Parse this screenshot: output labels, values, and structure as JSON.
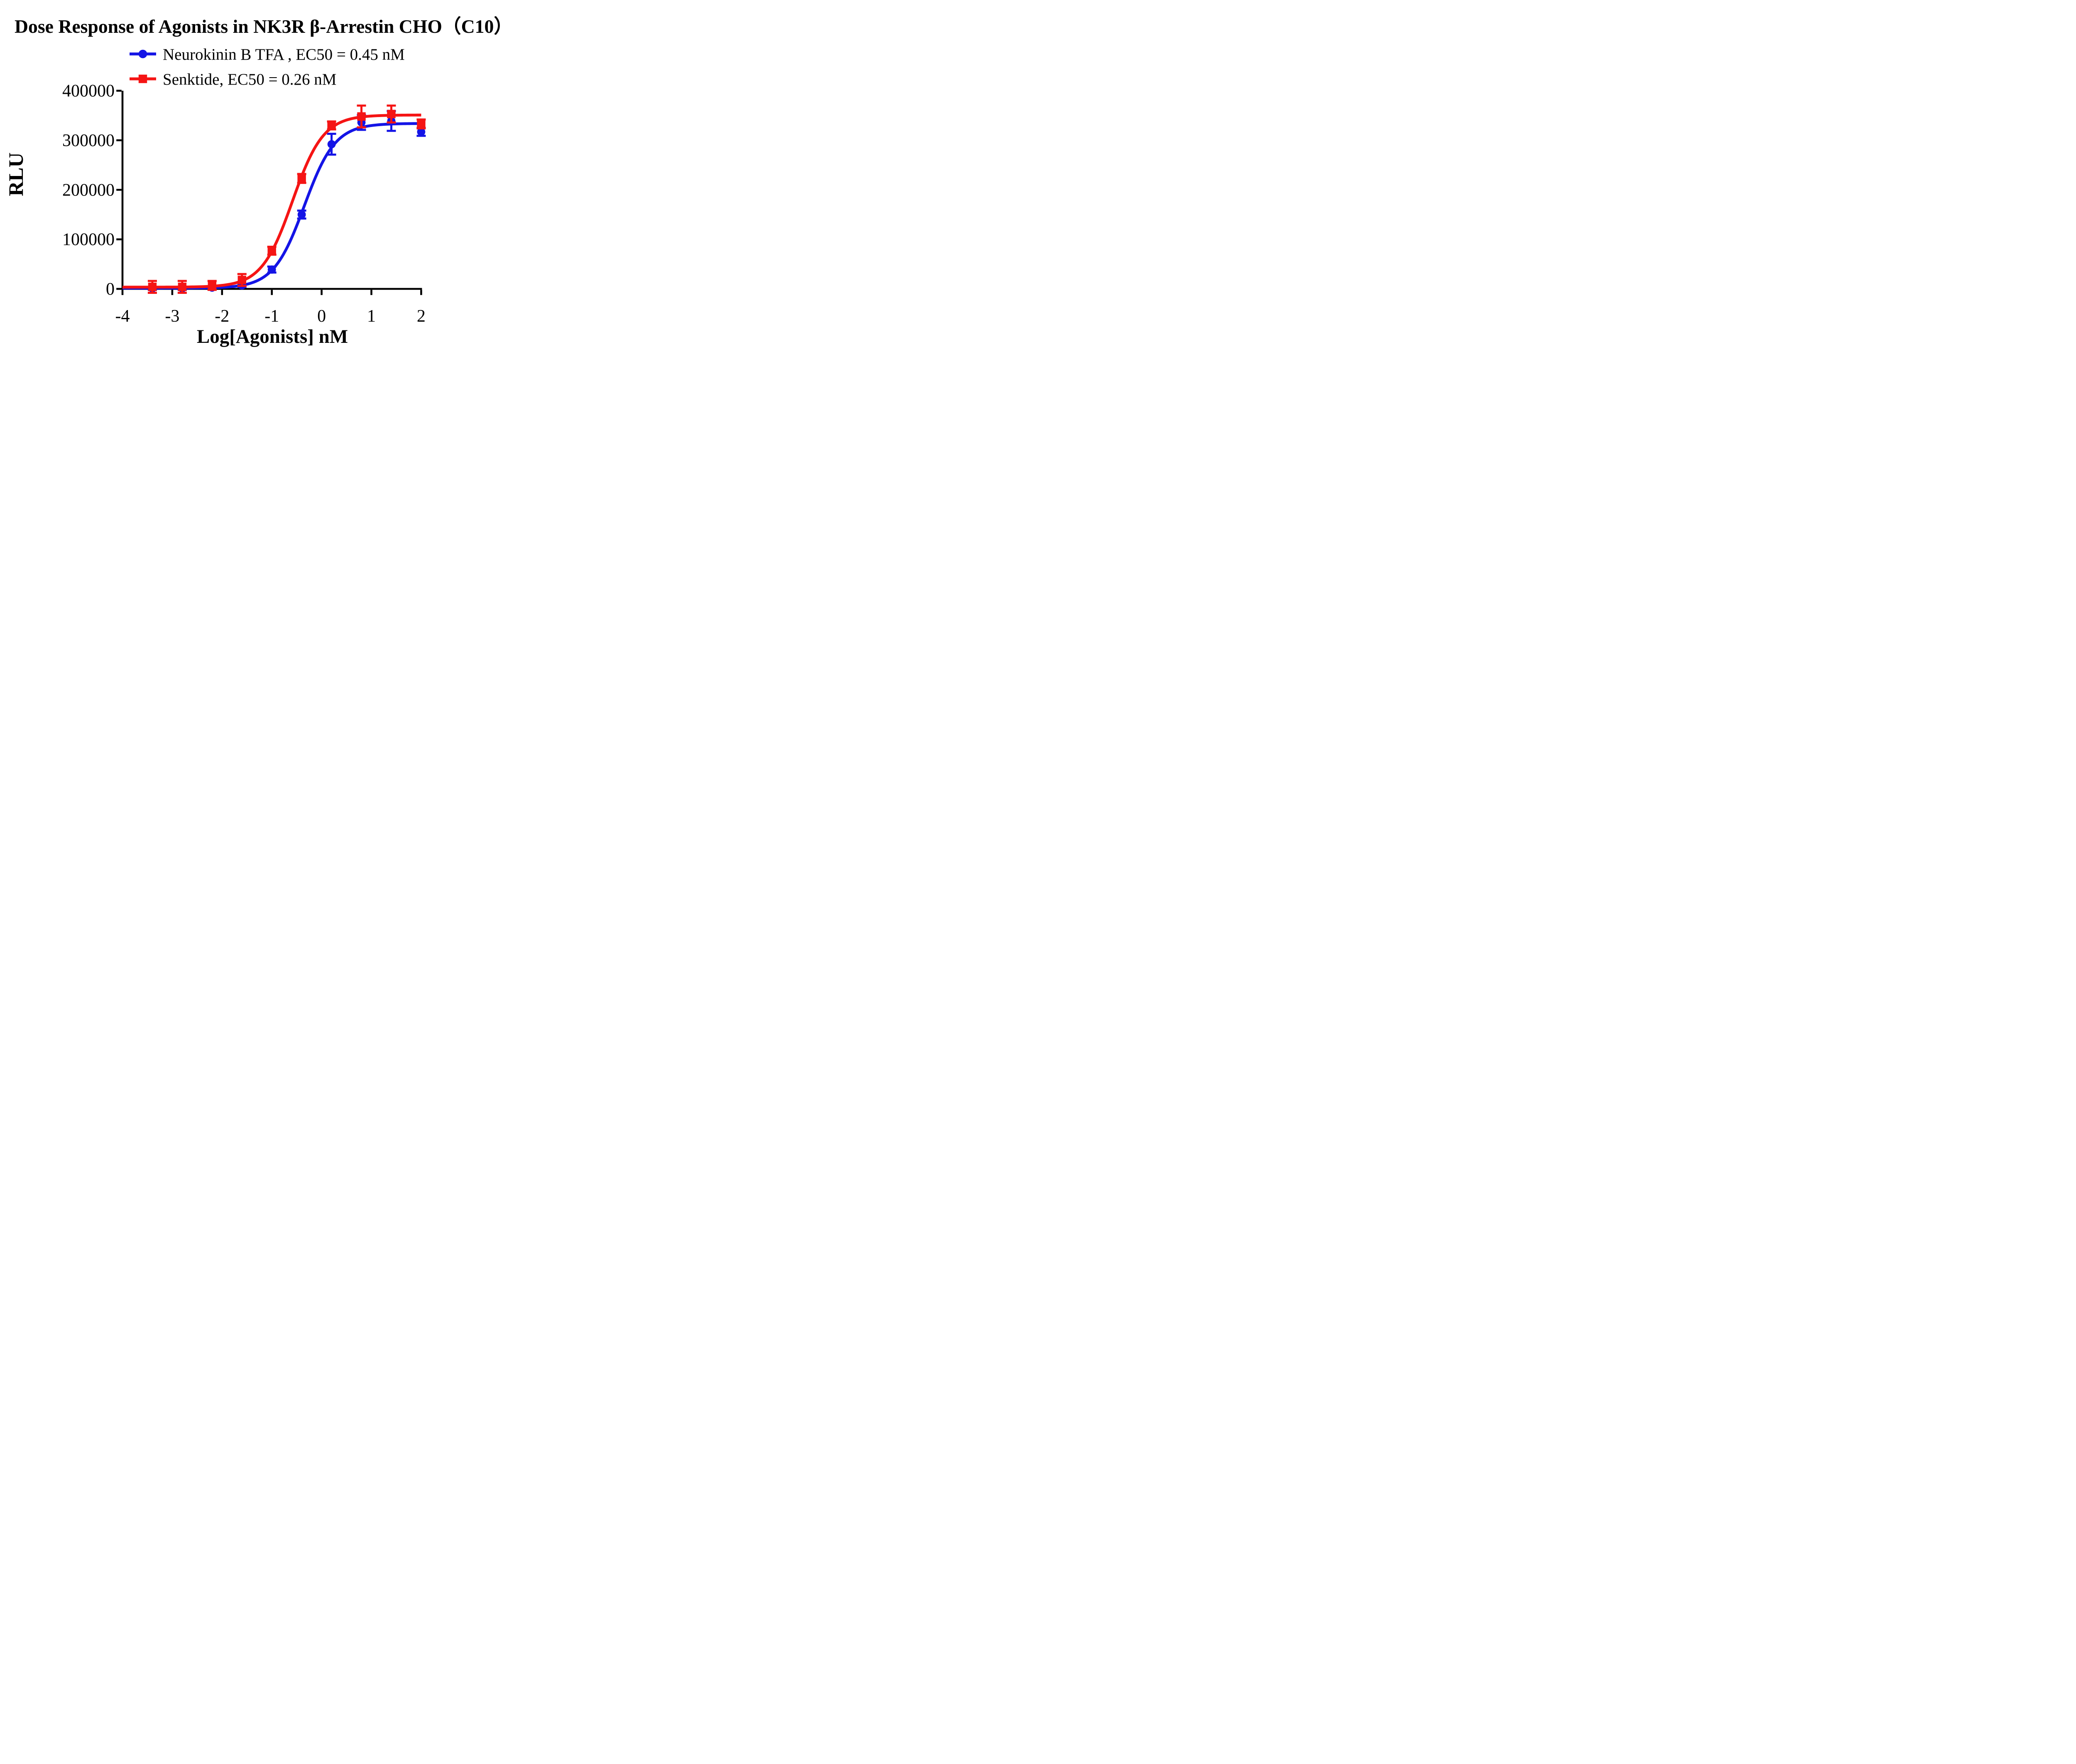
{
  "figure": {
    "title": "Dose Response of Agonists  in NK3R β-Arrestin CHO（C10）",
    "background_color": "#ffffff"
  },
  "legend": {
    "items": [
      {
        "label": "Neurokinin B TFA , EC50 = 0.45 nM",
        "marker": "circle",
        "color": "#1414e6"
      },
      {
        "label": "Senktide, EC50 = 0.26 nM",
        "marker": "square",
        "color": "#f51414"
      }
    ]
  },
  "chart_data": {
    "type": "line",
    "title": "Dose Response of Agonists  in NK3R β-Arrestin CHO（C10）",
    "xlabel": "Log[Agonists] nM",
    "ylabel": "RLU",
    "xlim": [
      -4,
      2
    ],
    "ylim": [
      0,
      400000
    ],
    "grid": false,
    "legend_position": "top-left above plot",
    "x_ticks": [
      -4,
      -3,
      -2,
      -1,
      0,
      1,
      2
    ],
    "x_tick_labels": [
      "-4",
      "-3",
      "-2",
      "-1",
      "0",
      "1",
      "2"
    ],
    "y_ticks": [
      0,
      100000,
      200000,
      300000,
      400000
    ],
    "y_tick_labels": [
      "0",
      "100000",
      "200000",
      "300000",
      "400000"
    ],
    "x": [
      -3.4,
      -2.8,
      -2.2,
      -1.6,
      -1.0,
      -0.4,
      0.2,
      0.8,
      1.4,
      2.0
    ],
    "series": [
      {
        "name": "Neurokinin B TFA",
        "ec50_nM": 0.45,
        "color": "#1414e6",
        "marker": "circle",
        "values": [
          1000,
          1000,
          2500,
          7000,
          39000,
          150000,
          292000,
          336000,
          339000,
          317000
        ],
        "errors": [
          3000,
          3000,
          3000,
          3000,
          6000,
          8000,
          21000,
          15000,
          20000,
          8000
        ],
        "fit": {
          "model": "4PL",
          "bottom": 1500,
          "top": 334000,
          "logEC50": -0.347,
          "hill": 1.4
        }
      },
      {
        "name": "Senktide",
        "ec50_nM": 0.26,
        "color": "#f51414",
        "marker": "square",
        "values": [
          4000,
          4000,
          7000,
          18000,
          77000,
          223000,
          330000,
          348000,
          353000,
          333000
        ],
        "errors": [
          12000,
          12000,
          9000,
          12000,
          8000,
          9000,
          8000,
          22000,
          17000,
          9000
        ],
        "fit": {
          "model": "4PL",
          "bottom": 3500,
          "top": 351000,
          "logEC50": -0.585,
          "hill": 1.4
        }
      }
    ]
  }
}
